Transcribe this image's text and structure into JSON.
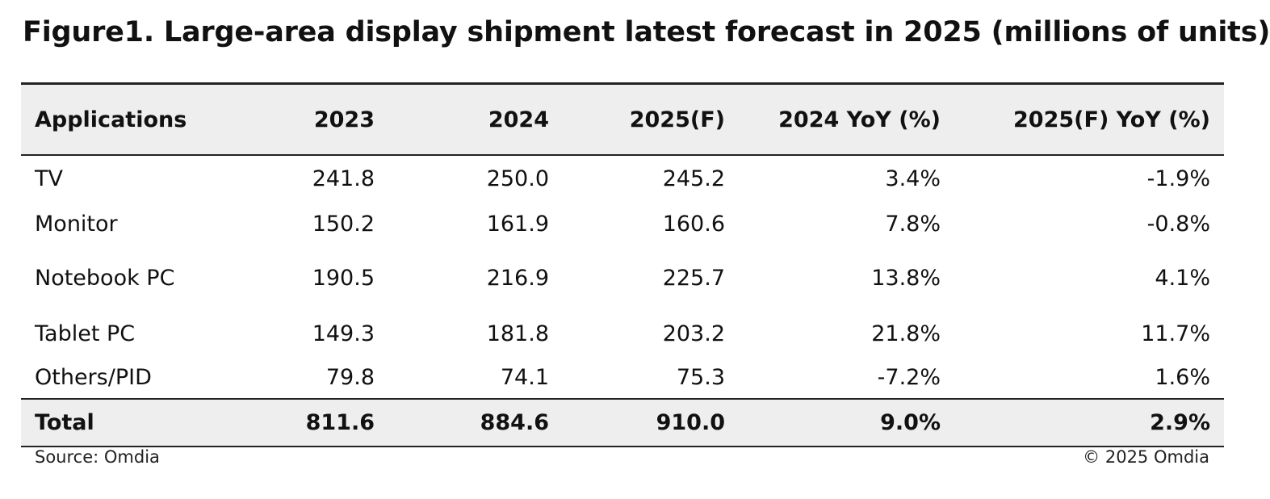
{
  "chart_data": {
    "type": "table",
    "title": "Figure1. Large-area display shipment latest forecast in 2025 (millions of units)",
    "columns": [
      "Applications",
      "2023",
      "2024",
      "2025(F)",
      "2024 YoY (%)",
      "2025(F) YoY (%)"
    ],
    "rows": [
      [
        "TV",
        "241.8",
        "250.0",
        "245.2",
        "3.4%",
        "-1.9%"
      ],
      [
        "Monitor",
        "150.2",
        "161.9",
        "160.6",
        "7.8%",
        "-0.8%"
      ],
      [
        "Notebook PC",
        "190.5",
        "216.9",
        "225.7",
        "13.8%",
        "4.1%"
      ],
      [
        "Tablet PC",
        "149.3",
        "181.8",
        "203.2",
        "21.8%",
        "11.7%"
      ],
      [
        "Others/PID",
        "79.8",
        "74.1",
        "75.3",
        "-7.2%",
        "1.6%"
      ]
    ],
    "total": [
      "Total",
      "811.6",
      "884.6",
      "910.0",
      "9.0%",
      "2.9%"
    ],
    "source": "Source: Omdia",
    "copyright": "© 2025 Omdia"
  }
}
